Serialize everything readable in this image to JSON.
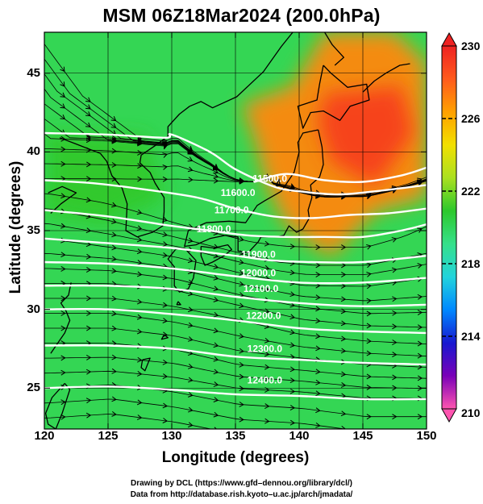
{
  "title": "MSM 06Z18Mar2024 (200.0hPa)",
  "chart_data": {
    "type": "heatmap",
    "title": "MSM 06Z18Mar2024 (200.0hPa)",
    "xlabel": "Longitude (degrees)",
    "ylabel": "Latitude  (degrees)",
    "xlim": [
      120,
      150
    ],
    "ylim": [
      22.4,
      47.6
    ],
    "x_ticks": [
      120,
      125,
      130,
      135,
      140,
      145,
      150
    ],
    "y_ticks": [
      25,
      30,
      35,
      40,
      45
    ],
    "colorbar": {
      "min": 210,
      "max": 230,
      "ticks": [
        230,
        226,
        222,
        218,
        214,
        210
      ],
      "colors": [
        "#ff55b0",
        "#7a00b8",
        "#1818d0",
        "#0088ff",
        "#22d4dc",
        "#35e08a",
        "#2cc82c",
        "#aae020",
        "#f2e000",
        "#ffa000",
        "#ff5a1c",
        "#ee2222"
      ]
    },
    "contour_labels": [
      {
        "text": "11500.0",
        "lon": 137.7,
        "lat": 38.3
      },
      {
        "text": "11600.0",
        "lon": 135.2,
        "lat": 37.4
      },
      {
        "text": "11700.0",
        "lon": 134.7,
        "lat": 36.3
      },
      {
        "text": "11800.0",
        "lon": 133.3,
        "lat": 35.1
      },
      {
        "text": "11900.0",
        "lon": 136.8,
        "lat": 33.5
      },
      {
        "text": "12000.0",
        "lon": 136.8,
        "lat": 32.3
      },
      {
        "text": "12100.0",
        "lon": 137.0,
        "lat": 31.3
      },
      {
        "text": "12200.0",
        "lon": 137.2,
        "lat": 29.6
      },
      {
        "text": "12300.0",
        "lon": 137.3,
        "lat": 27.5
      },
      {
        "text": "12400.0",
        "lon": 137.3,
        "lat": 25.5
      }
    ],
    "contours": [
      {
        "value": 11500,
        "points": [
          [
            136.5,
            38.1
          ],
          [
            139,
            38.6
          ],
          [
            142,
            38.2
          ],
          [
            145,
            38.1
          ],
          [
            148,
            38.5
          ],
          [
            150,
            39.0
          ]
        ]
      },
      {
        "value": 11600,
        "points": [
          [
            120,
            41.2
          ],
          [
            125,
            41.1
          ],
          [
            129.5,
            40.9
          ],
          [
            130,
            41.1
          ],
          [
            133,
            40.0
          ],
          [
            135,
            38.9
          ],
          [
            138,
            37.8
          ],
          [
            140,
            37.5
          ],
          [
            143,
            37.3
          ],
          [
            146,
            37.5
          ],
          [
            150,
            37.9
          ]
        ]
      },
      {
        "value": 11700,
        "points": [
          [
            120,
            38.2
          ],
          [
            124,
            38.0
          ],
          [
            128,
            37.6
          ],
          [
            132,
            37.1
          ],
          [
            135,
            36.4
          ],
          [
            138,
            35.9
          ],
          [
            141,
            35.8
          ],
          [
            144,
            36.0
          ],
          [
            147,
            36.1
          ],
          [
            150,
            36.4
          ]
        ]
      },
      {
        "value": 11800,
        "points": [
          [
            120,
            36.3
          ],
          [
            125,
            35.9
          ],
          [
            130,
            35.3
          ],
          [
            133,
            35.0
          ],
          [
            136,
            34.7
          ],
          [
            139,
            34.6
          ],
          [
            142,
            34.6
          ],
          [
            145,
            34.6
          ],
          [
            148,
            35.0
          ],
          [
            150,
            35.4
          ]
        ]
      },
      {
        "value": 11900,
        "points": [
          [
            120,
            34.5
          ],
          [
            125,
            34.2
          ],
          [
            130,
            33.9
          ],
          [
            135,
            33.4
          ],
          [
            138,
            33.1
          ],
          [
            141,
            33.0
          ],
          [
            145,
            33.0
          ],
          [
            150,
            33.4
          ]
        ]
      },
      {
        "value": 12000,
        "points": [
          [
            120,
            33.0
          ],
          [
            125,
            32.9
          ],
          [
            130,
            32.6
          ],
          [
            135,
            32.1
          ],
          [
            140,
            31.7
          ],
          [
            145,
            31.7
          ],
          [
            150,
            32.0
          ]
        ]
      },
      {
        "value": 12100,
        "points": [
          [
            120,
            31.5
          ],
          [
            125,
            31.5
          ],
          [
            130,
            31.3
          ],
          [
            135,
            30.8
          ],
          [
            140,
            30.4
          ],
          [
            145,
            30.2
          ],
          [
            150,
            30.3
          ]
        ]
      },
      {
        "value": 12200,
        "points": [
          [
            120,
            30.0
          ],
          [
            125,
            30.0
          ],
          [
            130,
            29.7
          ],
          [
            135,
            29.3
          ],
          [
            140,
            28.8
          ],
          [
            145,
            28.6
          ],
          [
            150,
            28.5
          ]
        ]
      },
      {
        "value": 12300,
        "points": [
          [
            120,
            27.7
          ],
          [
            125,
            27.7
          ],
          [
            130,
            27.5
          ],
          [
            135,
            27.0
          ],
          [
            140,
            26.8
          ],
          [
            145,
            26.6
          ],
          [
            150,
            26.5
          ]
        ]
      },
      {
        "value": 12400,
        "points": [
          [
            120,
            25.0
          ],
          [
            125,
            25.1
          ],
          [
            130,
            24.9
          ],
          [
            135,
            24.6
          ],
          [
            140,
            24.5
          ],
          [
            145,
            24.3
          ],
          [
            150,
            24.3
          ]
        ]
      }
    ],
    "temperature_regions": [
      {
        "value": 229,
        "points": [
          [
            142,
            43.7
          ],
          [
            145,
            43.9
          ],
          [
            148,
            44.2
          ],
          [
            149,
            41.2
          ],
          [
            146,
            37.8
          ],
          [
            142.5,
            39.4
          ],
          [
            141.5,
            41.8
          ]
        ]
      },
      {
        "value": 227,
        "points": [
          [
            135.5,
            43.0
          ],
          [
            139.5,
            44.2
          ],
          [
            142,
            47.6
          ],
          [
            147.5,
            47.6
          ],
          [
            150,
            45.7
          ],
          [
            150,
            37.1
          ],
          [
            146,
            36.2
          ],
          [
            142.5,
            33.3
          ],
          [
            139,
            35.3
          ],
          [
            137.5,
            37.8
          ],
          [
            136.5,
            40.8
          ]
        ]
      },
      {
        "value": 219.5,
        "points": [
          [
            120,
            40.0
          ],
          [
            126,
            39.8
          ],
          [
            127.5,
            38.8
          ],
          [
            127,
            36.2
          ],
          [
            120,
            37.8
          ]
        ]
      },
      {
        "value": 221,
        "points": [
          [
            120,
            41.2
          ],
          [
            128,
            41.0
          ],
          [
            129.5,
            37.0
          ],
          [
            125,
            35.3
          ],
          [
            120,
            36.0
          ]
        ]
      }
    ],
    "coastlines": [
      [
        [
          121.2,
          40.9
        ],
        [
          122.5,
          40.5
        ],
        [
          124.4,
          39.9
        ],
        [
          124.9,
          39.4
        ],
        [
          125.3,
          38.5
        ],
        [
          126.1,
          37.7
        ],
        [
          126.5,
          36.7
        ],
        [
          126.4,
          35.0
        ],
        [
          127.3,
          34.6
        ],
        [
          128.5,
          34.9
        ],
        [
          129.3,
          35.3
        ],
        [
          129.4,
          36.2
        ],
        [
          129.4,
          37.1
        ],
        [
          128.7,
          38.0
        ],
        [
          128.3,
          38.7
        ],
        [
          127.5,
          39.3
        ],
        [
          127.6,
          39.8
        ],
        [
          128.7,
          40.4
        ],
        [
          129.7,
          41.0
        ],
        [
          129.7,
          41.6
        ],
        [
          130.6,
          42.4
        ],
        [
          131.4,
          42.9
        ],
        [
          132.3,
          43.2
        ],
        [
          133.2,
          42.8
        ],
        [
          135.1,
          43.5
        ],
        [
          137.2,
          45.1
        ],
        [
          138.6,
          46.7
        ],
        [
          139.5,
          47.6
        ]
      ],
      [
        [
          141.9,
          45.5
        ],
        [
          142.5,
          45.0
        ],
        [
          143.8,
          44.1
        ],
        [
          145.3,
          44.3
        ],
        [
          145.5,
          43.3
        ],
        [
          144.0,
          42.9
        ],
        [
          143.2,
          42.0
        ],
        [
          141.9,
          42.6
        ],
        [
          140.9,
          42.5
        ],
        [
          140.3,
          41.5
        ],
        [
          140.1,
          42.2
        ],
        [
          139.9,
          42.9
        ],
        [
          141.4,
          43.3
        ],
        [
          141.6,
          44.3
        ],
        [
          141.9,
          45.5
        ]
      ],
      [
        [
          141.5,
          41.4
        ],
        [
          141.8,
          40.3
        ],
        [
          141.9,
          39.2
        ],
        [
          141.6,
          38.4
        ],
        [
          140.9,
          37.9
        ],
        [
          141.0,
          37.1
        ],
        [
          140.7,
          36.3
        ],
        [
          140.8,
          35.8
        ],
        [
          140.3,
          35.1
        ],
        [
          139.8,
          34.9
        ],
        [
          139.2,
          35.3
        ],
        [
          138.8,
          34.7
        ],
        [
          138.2,
          34.6
        ],
        [
          137.0,
          34.6
        ],
        [
          136.8,
          34.3
        ],
        [
          136.0,
          33.6
        ],
        [
          135.2,
          33.7
        ],
        [
          135.2,
          34.6
        ],
        [
          134.2,
          34.7
        ],
        [
          133.0,
          34.5
        ],
        [
          131.9,
          34.1
        ],
        [
          131.0,
          34.0
        ],
        [
          131.3,
          35.0
        ],
        [
          132.7,
          35.5
        ],
        [
          134.5,
          35.6
        ],
        [
          135.8,
          35.5
        ],
        [
          136.7,
          36.6
        ],
        [
          137.3,
          36.9
        ],
        [
          138.6,
          37.5
        ],
        [
          139.6,
          38.7
        ],
        [
          140.0,
          40.0
        ],
        [
          139.9,
          40.6
        ],
        [
          140.3,
          41.2
        ],
        [
          141.5,
          41.4
        ]
      ],
      [
        [
          132.3,
          34.0
        ],
        [
          133.3,
          33.9
        ],
        [
          134.4,
          34.1
        ],
        [
          134.7,
          33.8
        ],
        [
          134.1,
          33.4
        ],
        [
          133.2,
          33.0
        ],
        [
          132.6,
          32.8
        ],
        [
          132.3,
          33.4
        ],
        [
          132.3,
          34.0
        ]
      ],
      [
        [
          131.0,
          33.9
        ],
        [
          131.9,
          33.1
        ],
        [
          131.7,
          32.0
        ],
        [
          131.3,
          31.3
        ],
        [
          130.6,
          31.1
        ],
        [
          130.2,
          31.5
        ],
        [
          130.2,
          32.7
        ],
        [
          129.7,
          33.2
        ],
        [
          130.3,
          33.8
        ],
        [
          131.0,
          33.9
        ]
      ],
      [
        [
          142.0,
          47.6
        ],
        [
          142.6,
          46.8
        ],
        [
          143.5,
          46.0
        ],
        [
          142.8,
          45.5
        ]
      ],
      [
        [
          121.6,
          25.3
        ],
        [
          122.0,
          24.9
        ],
        [
          121.4,
          23.4
        ],
        [
          120.9,
          22.4
        ],
        [
          120.3,
          22.7
        ],
        [
          120.1,
          23.4
        ],
        [
          120.6,
          24.4
        ],
        [
          121.6,
          25.3
        ]
      ],
      [
        [
          127.7,
          26.8
        ],
        [
          128.3,
          26.9
        ],
        [
          127.9,
          26.1
        ],
        [
          127.6,
          26.3
        ],
        [
          127.7,
          26.8
        ]
      ],
      [
        [
          129.4,
          28.4
        ],
        [
          129.7,
          28.2
        ],
        [
          129.2,
          28.1
        ],
        [
          129.4,
          28.4
        ]
      ],
      [
        [
          130.5,
          30.5
        ],
        [
          130.7,
          30.3
        ],
        [
          130.4,
          30.3
        ],
        [
          130.5,
          30.5
        ]
      ],
      [
        [
          138.4,
          38.3
        ],
        [
          138.5,
          37.9
        ],
        [
          138.2,
          37.8
        ],
        [
          138.4,
          38.3
        ]
      ],
      [
        [
          145.0,
          43.8
        ],
        [
          145.9,
          44.5
        ],
        [
          146.8,
          45.0
        ],
        [
          147.9,
          45.5
        ],
        [
          148.7,
          45.6
        ]
      ],
      [
        [
          122.1,
          31.7
        ],
        [
          121.9,
          30.9
        ],
        [
          121.3,
          30.4
        ],
        [
          121.7,
          29.9
        ],
        [
          122.0,
          29.3
        ],
        [
          121.6,
          28.5
        ],
        [
          121.0,
          27.8
        ],
        [
          120.5,
          27.2
        ]
      ],
      [
        [
          120.5,
          36.1
        ],
        [
          121.3,
          36.7
        ],
        [
          122.5,
          37.4
        ],
        [
          121.4,
          37.8
        ],
        [
          120.3,
          37.4
        ]
      ]
    ]
  },
  "credits": {
    "line1": "Drawing by DCL (https://www.gfd–dennou.org/library/dcl/)",
    "line2": "Data from http://database.rish.kyoto–u.ac.jp/arch/jmadata/"
  }
}
